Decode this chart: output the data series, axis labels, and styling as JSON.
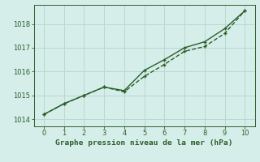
{
  "x": [
    0,
    1,
    2,
    3,
    4,
    5,
    6,
    7,
    8,
    9,
    10
  ],
  "line1": [
    1014.2,
    1014.65,
    1015.0,
    1015.35,
    1015.2,
    1016.05,
    1016.5,
    1017.0,
    1017.25,
    1017.8,
    1018.55
  ],
  "line2": [
    1014.2,
    1014.65,
    1015.0,
    1015.35,
    1015.15,
    1015.8,
    1016.3,
    1016.85,
    1017.05,
    1017.6,
    1018.55
  ],
  "bg_color": "#d6eeea",
  "line_color": "#2a5e2a",
  "grid_color": "#b8d8d0",
  "xlabel": "Graphe pression niveau de la mer (hPa)",
  "ylim": [
    1013.7,
    1018.8
  ],
  "xlim": [
    -0.5,
    10.5
  ],
  "yticks": [
    1014,
    1015,
    1016,
    1017,
    1018
  ],
  "xticks": [
    0,
    1,
    2,
    3,
    4,
    5,
    6,
    7,
    8,
    9,
    10
  ],
  "xlabel_fontsize": 6.8,
  "tick_fontsize": 6.0,
  "line_width": 1.0,
  "marker_size": 2.5
}
